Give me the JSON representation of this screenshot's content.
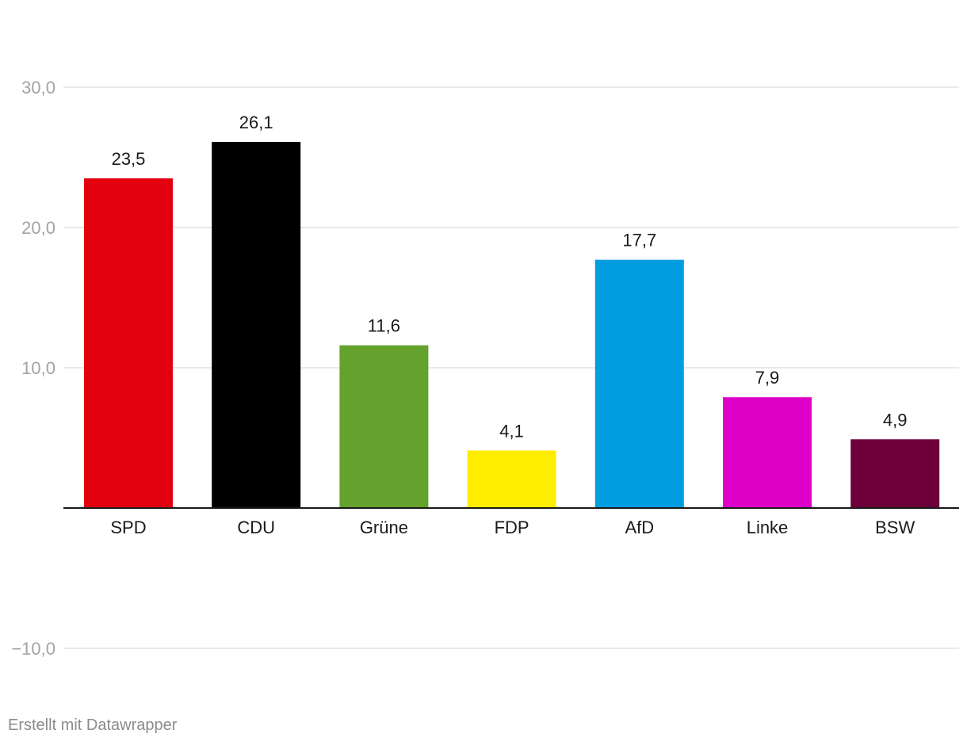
{
  "footer": {
    "credit": "Erstellt mit Datawrapper"
  },
  "chart_data": {
    "type": "bar",
    "title": "",
    "xlabel": "",
    "ylabel": "",
    "categories": [
      "SPD",
      "CDU",
      "Grüne",
      "FDP",
      "AfD",
      "Linke",
      "BSW"
    ],
    "values": [
      23.5,
      26.1,
      11.6,
      4.1,
      17.7,
      7.9,
      4.9
    ],
    "value_labels": [
      "23,5",
      "26,1",
      "11,6",
      "4,1",
      "17,7",
      "7,9",
      "4,9"
    ],
    "colors": [
      "#e3000f",
      "#000000",
      "#64a12d",
      "#ffed00",
      "#009ee0",
      "#df00c8",
      "#6d0039"
    ],
    "ylim": [
      -10,
      30
    ],
    "yticks": [
      {
        "value": 30,
        "label": "30,0"
      },
      {
        "value": 20,
        "label": "20,0"
      },
      {
        "value": 10,
        "label": "10,0"
      },
      {
        "value": -10,
        "label": "−10,0"
      }
    ],
    "grid": true,
    "legend": "none"
  }
}
